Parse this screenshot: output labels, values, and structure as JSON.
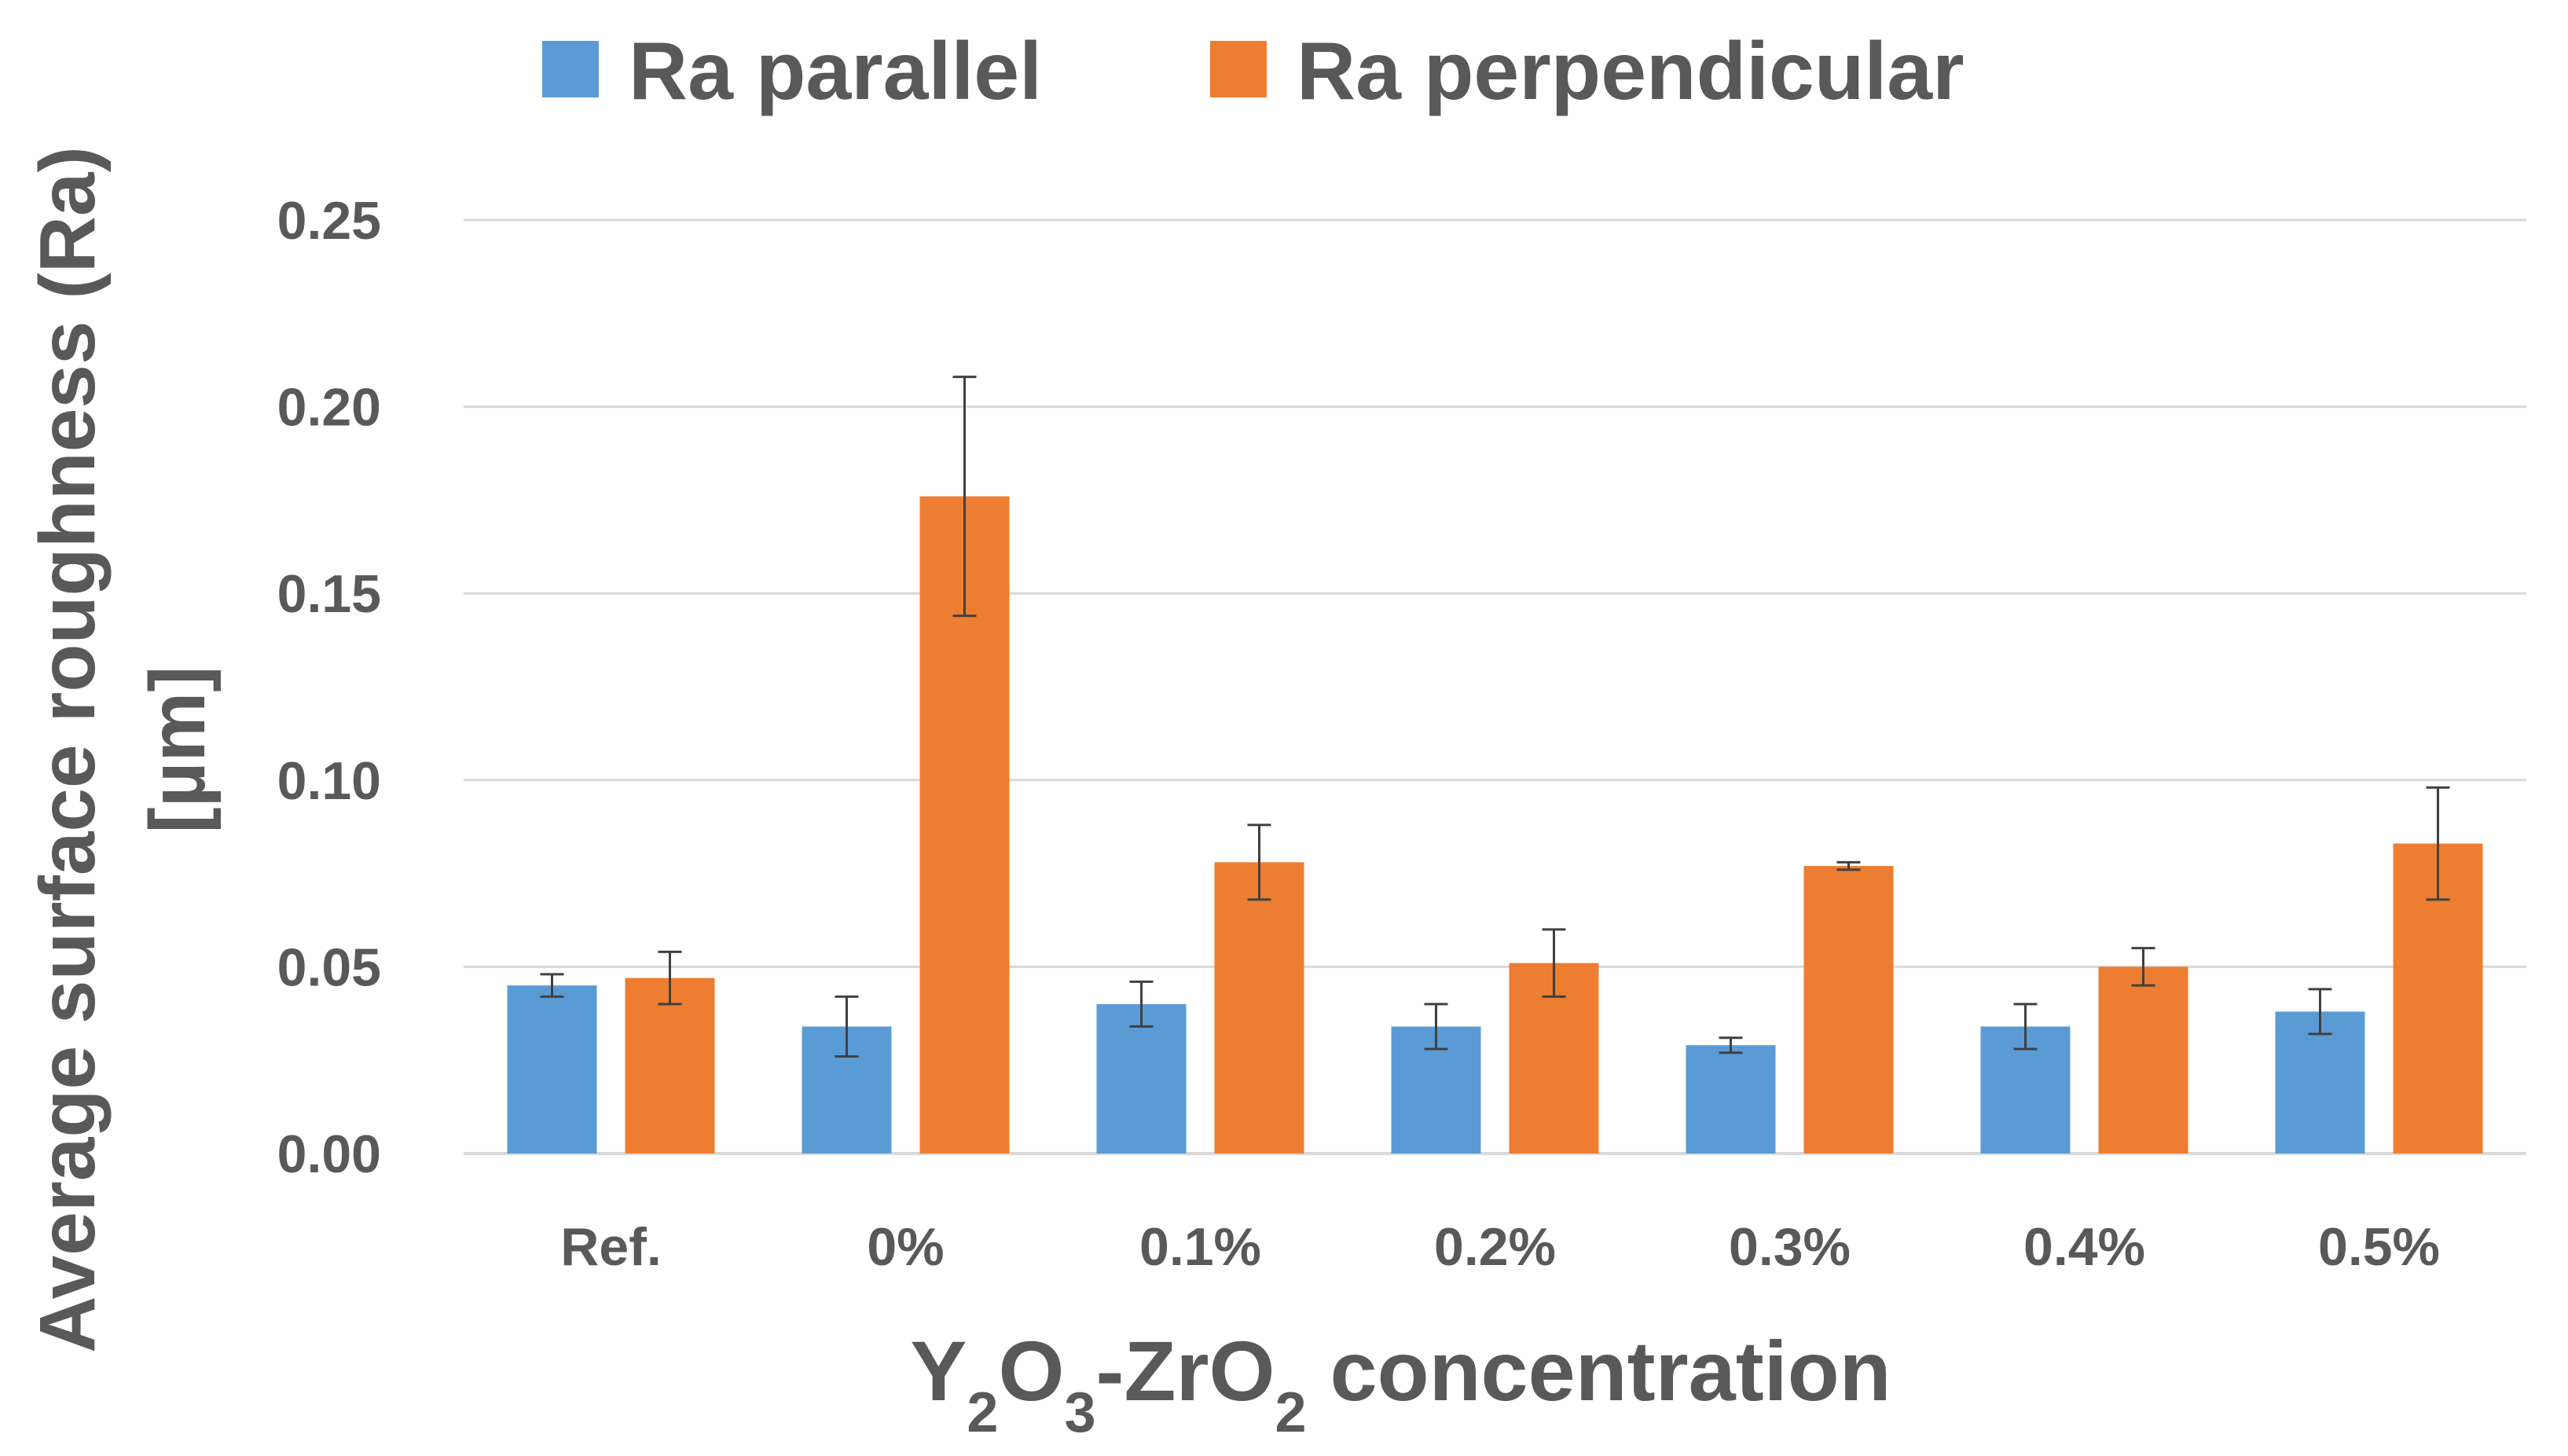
{
  "chart_data": {
    "type": "bar",
    "title": "",
    "xlabel_parts": [
      {
        "text": "Y",
        "sub": false
      },
      {
        "text": "2",
        "sub": true
      },
      {
        "text": "O",
        "sub": false
      },
      {
        "text": "3",
        "sub": true
      },
      {
        "text": "-ZrO",
        "sub": false
      },
      {
        "text": "2",
        "sub": true
      },
      {
        "text": " concentration",
        "sub": false
      }
    ],
    "ylabel_lines": [
      "Average surface roughness (Ra)",
      "[µm]"
    ],
    "categories": [
      "Ref.",
      "0%",
      "0.1%",
      "0.2%",
      "0.3%",
      "0.4%",
      "0.5%"
    ],
    "ylim": [
      0,
      0.25
    ],
    "yticks": [
      0,
      0.05,
      0.1,
      0.15,
      0.2,
      0.25
    ],
    "ytick_labels": [
      "0.00",
      "0.05",
      "0.10",
      "0.15",
      "0.20",
      "0.25"
    ],
    "grid": true,
    "legend_position": "top-center",
    "series": [
      {
        "name": "Ra parallel",
        "color": "#5B9BD5",
        "values": [
          0.045,
          0.034,
          0.04,
          0.034,
          0.029,
          0.034,
          0.038
        ],
        "errors": [
          0.003,
          0.008,
          0.006,
          0.006,
          0.002,
          0.006,
          0.006
        ]
      },
      {
        "name": "Ra perpendicular",
        "color": "#ED7D31",
        "values": [
          0.047,
          0.176,
          0.078,
          0.051,
          0.077,
          0.05,
          0.083
        ],
        "errors": [
          0.007,
          0.032,
          0.01,
          0.009,
          0.001,
          0.005,
          0.015
        ]
      }
    ]
  }
}
